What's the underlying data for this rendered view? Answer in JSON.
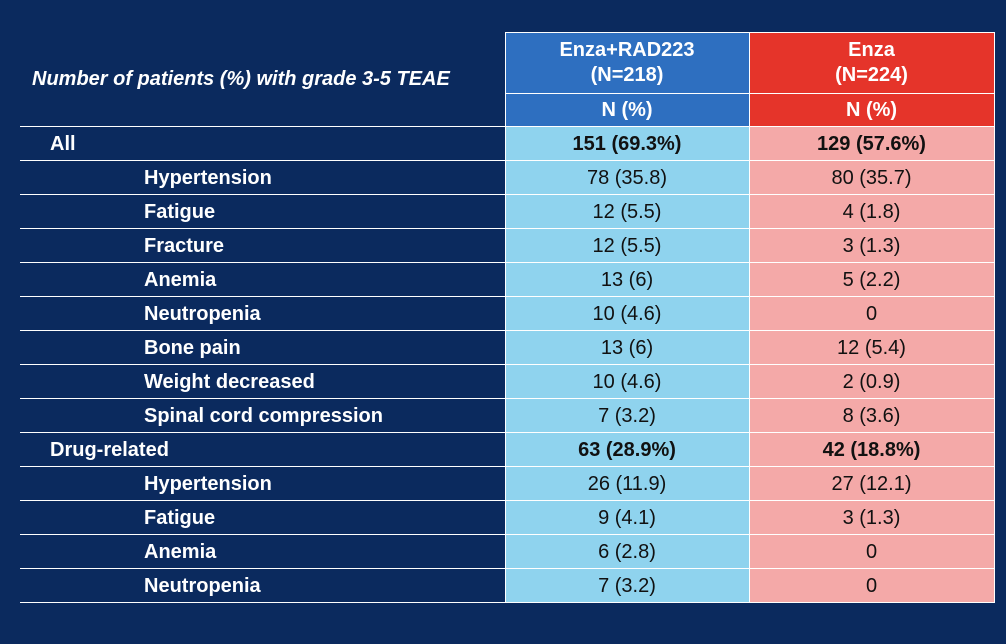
{
  "header": {
    "title": "Number of patients (%) with grade 3-5 TEAE",
    "arm_a": {
      "name": "Enza+RAD223",
      "n": "(N=218)",
      "unit": "N (%)"
    },
    "arm_b": {
      "name": "Enza",
      "n": "(N=224)",
      "unit": "N (%)"
    }
  },
  "colors": {
    "background": "#0b2a5e",
    "arm_a_header": "#2e6fc0",
    "arm_b_header": "#e5342a",
    "arm_a_cell": "#8fd3ee",
    "arm_b_cell": "#f4a9a8"
  },
  "rows": [
    {
      "label": "All",
      "a": "151 (69.3%)",
      "b": "129 (57.6%)"
    },
    {
      "label": "Hypertension",
      "a": "78 (35.8)",
      "b": "80 (35.7)"
    },
    {
      "label": "Fatigue",
      "a": "12 (5.5)",
      "b": "4 (1.8)"
    },
    {
      "label": "Fracture",
      "a": "12 (5.5)",
      "b": "3 (1.3)"
    },
    {
      "label": "Anemia",
      "a": "13 (6)",
      "b": "5 (2.2)"
    },
    {
      "label": "Neutropenia",
      "a": "10 (4.6)",
      "b": "0"
    },
    {
      "label": "Bone pain",
      "a": "13 (6)",
      "b": "12 (5.4)"
    },
    {
      "label": "Weight decreased",
      "a": "10 (4.6)",
      "b": "2 (0.9)"
    },
    {
      "label": "Spinal cord compression",
      "a": "7 (3.2)",
      "b": "8 (3.6)"
    },
    {
      "label": "Drug-related",
      "a": "63 (28.9%)",
      "b": "42 (18.8%)"
    },
    {
      "label": "Hypertension",
      "a": "26 (11.9)",
      "b": "27 (12.1)"
    },
    {
      "label": "Fatigue",
      "a": "9 (4.1)",
      "b": "3 (1.3)"
    },
    {
      "label": "Anemia",
      "a": "6 (2.8)",
      "b": "0"
    },
    {
      "label": "Neutropenia",
      "a": "7 (3.2)",
      "b": "0"
    }
  ]
}
